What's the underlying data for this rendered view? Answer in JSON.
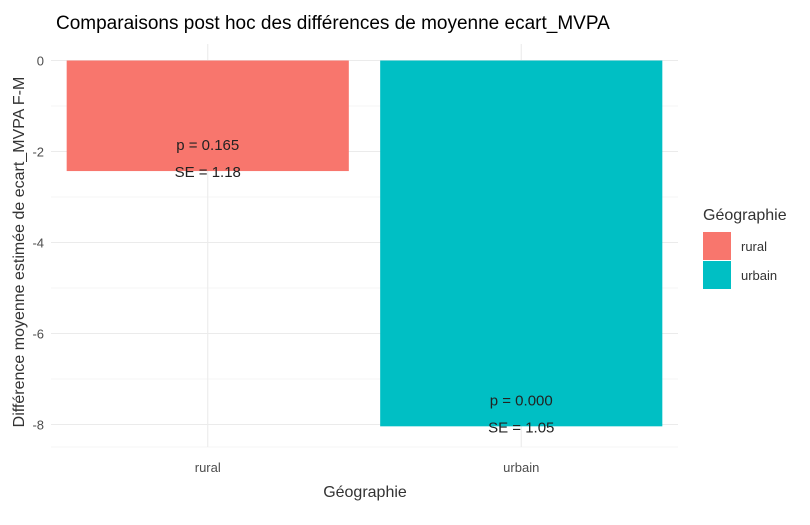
{
  "chart_data": {
    "type": "bar",
    "title": "Comparaisons post hoc des différences de moyenne  ecart_MVPA",
    "xlabel": "Géographie",
    "ylabel": "Différence moyenne estimée de ecart_MVPA F-M",
    "categories": [
      "rural",
      "urbain"
    ],
    "values": [
      -2.43,
      -8.04
    ],
    "colors": [
      "#F8766D",
      "#00BFC4"
    ],
    "bar_labels": [
      {
        "p": "p = 0.165",
        "se": "SE = 1.18"
      },
      {
        "p": "p = 0.000",
        "se": "SE = 1.05"
      }
    ],
    "yticks": [
      "0",
      "-2",
      "-4",
      "-6",
      "-8"
    ],
    "ytick_values": [
      0,
      -2,
      -4,
      -6,
      -8
    ],
    "ylim": [
      -8.42,
      0
    ],
    "grid": true,
    "legend": {
      "title": "Géographie",
      "position": "right",
      "entries": [
        {
          "label": "rural",
          "color": "#F8766D"
        },
        {
          "label": "urbain",
          "color": "#00BFC4"
        }
      ]
    }
  }
}
